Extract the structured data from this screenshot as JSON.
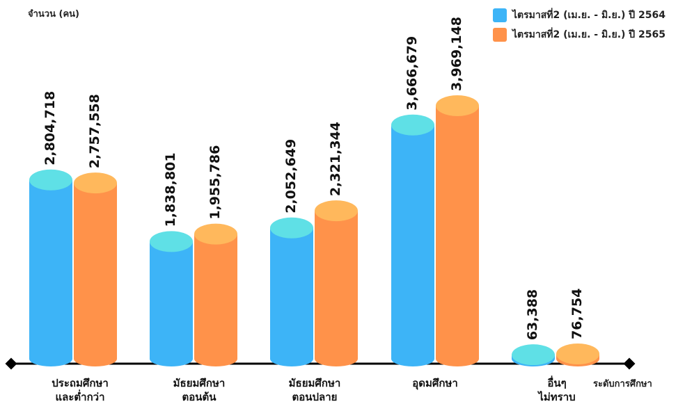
{
  "chart_data": {
    "type": "bar",
    "ylabel": "จำนวน (คน)",
    "xlabel": "ระดับการศึกษา",
    "categories": [
      "ประถมศึกษา\nและต่ำกว่า",
      "มัธยมศึกษา\nตอนต้น",
      "มัธยมศึกษา\nตอนปลาย",
      "อุดมศึกษา",
      "อื่นๆ\nไม่ทราบ"
    ],
    "series": [
      {
        "name": "ไตรมาสที่2 (เม.ย. - มิ.ย.) ปี 2564",
        "color": "#3db4f7",
        "cap_color": "#5fe0e6",
        "values": [
          2804718,
          1838801,
          2052649,
          3666679,
          63388
        ],
        "labels": [
          "2,804,718",
          "1,838,801",
          "2,052,649",
          "3,666,679",
          "63,388"
        ]
      },
      {
        "name": "ไตรมาสที่2 (เม.ย. - มิ.ย.) ปี 2565",
        "color": "#ff924a",
        "cap_color": "#ffb85c",
        "values": [
          2757558,
          1955786,
          2321344,
          3969148,
          76754
        ],
        "labels": [
          "2,757,558",
          "1,955,786",
          "2,321,344",
          "3,969,148",
          "76,754"
        ]
      }
    ],
    "legend_position": "top-right",
    "grid": false,
    "style": "3d-cylinder"
  }
}
